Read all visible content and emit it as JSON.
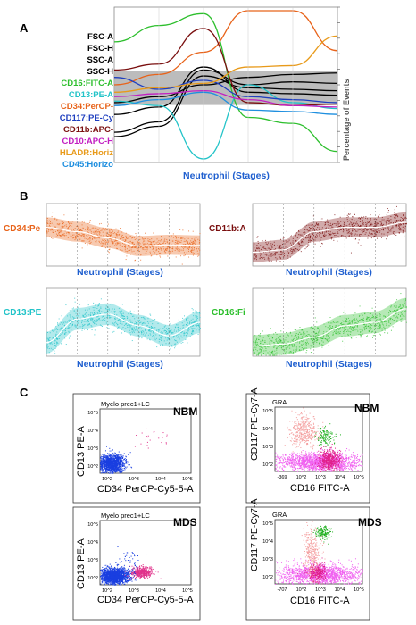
{
  "panels": {
    "a": "A",
    "b": "B",
    "c": "C"
  },
  "panelA": {
    "labels": [
      {
        "text": "FSC-A",
        "color": "#000000"
      },
      {
        "text": "FSC-H",
        "color": "#000000"
      },
      {
        "text": "SSC-A",
        "color": "#000000"
      },
      {
        "text": "SSC-H",
        "color": "#000000"
      },
      {
        "text": "CD16:FITC-A",
        "color": "#2dbf2d"
      },
      {
        "text": "CD13:PE-A",
        "color": "#22c3c8"
      },
      {
        "text": "CD34:PerCP-",
        "color": "#e8631a"
      },
      {
        "text": "CD117:PE-Cy",
        "color": "#1f3fbf"
      },
      {
        "text": "CD11b:APC-",
        "color": "#7a0f0f"
      },
      {
        "text": "CD10:APC-H",
        "color": "#c21fc2"
      },
      {
        "text": "HLADR:Horiz",
        "color": "#e89a1a"
      },
      {
        "text": "CD45:Horizo",
        "color": "#1f8fdf"
      }
    ],
    "xlabel": "Neutrophil (Stages)",
    "ylabel": "Percentage of Events"
  },
  "panelB": [
    {
      "label": "CD34:Pe",
      "color": "#e8631a",
      "xlabel": "Neutrophil (Stages)"
    },
    {
      "label": "CD11b:A",
      "color": "#7a0f0f",
      "xlabel": "Neutrophil (Stages)"
    },
    {
      "label": "CD13:PE",
      "color": "#22c3c8",
      "xlabel": "Neutrophil (Stages)"
    },
    {
      "label": "CD16:Fi",
      "color": "#2dbf2d",
      "xlabel": "Neutrophil (Stages)"
    }
  ],
  "panelC": [
    {
      "gate": "Myelo prec1+LC",
      "tag": "NBM",
      "ylabel": "CD13 PE-A",
      "xlabel": "CD34 PerCP-Cy5-5-A",
      "xticks": [
        "10^2",
        "10^3",
        "10^4",
        "10^5"
      ],
      "yticks": [
        "10^2",
        "10^3",
        "10^4",
        "10^5"
      ]
    },
    {
      "gate": "GRA",
      "tag": "NBM",
      "ylabel": "CD117 PE-Cy7-A",
      "xlabel": "CD16 FITC-A",
      "xticks": [
        "-369",
        "10^2",
        "10^3",
        "10^4",
        "10^5"
      ],
      "yticks": [
        "10^2",
        "10^3",
        "10^4",
        "10^5"
      ]
    },
    {
      "gate": "Myelo prec1+LC",
      "tag": "MDS",
      "ylabel": "CD13 PE-A",
      "xlabel": "CD34 PerCP-Cy5-5-A",
      "xticks": [
        "10^2",
        "10^3",
        "10^4",
        "10^5"
      ],
      "yticks": [
        "10^2",
        "10^3",
        "10^4",
        "10^5"
      ]
    },
    {
      "gate": "GRA",
      "tag": "MDS",
      "ylabel": "CD117 PE-Cy7-A",
      "xlabel": "CD16 FITC-A",
      "xticks": [
        "-707",
        "10^2",
        "10^3",
        "10^4",
        "10^5"
      ],
      "yticks": [
        "10^2",
        "10^3",
        "10^4",
        "10^5"
      ]
    }
  ],
  "chart_data": [
    {
      "type": "line",
      "panel": "A",
      "xlabel": "Neutrophil (Stages)",
      "ylabel": "Percentage of Events",
      "x": [
        0,
        1,
        2,
        3,
        4,
        5
      ],
      "series": [
        {
          "name": "FSC-A",
          "color": "#000000",
          "values": [
            0.38,
            0.42,
            0.5,
            0.55,
            0.57,
            0.58
          ]
        },
        {
          "name": "FSC-H",
          "color": "#000000",
          "values": [
            0.3,
            0.35,
            0.62,
            0.45,
            0.44,
            0.43
          ]
        },
        {
          "name": "SSC-A",
          "color": "#000000",
          "values": [
            0.18,
            0.25,
            0.6,
            0.5,
            0.52,
            0.51
          ]
        },
        {
          "name": "SSC-H",
          "color": "#000000",
          "values": [
            0.15,
            0.22,
            0.56,
            0.48,
            0.47,
            0.46
          ]
        },
        {
          "name": "CD16:FITC-A",
          "color": "#2dbf2d",
          "values": [
            0.79,
            0.9,
            0.98,
            0.28,
            0.24,
            0.05
          ]
        },
        {
          "name": "CD13:PE-A",
          "color": "#22c3c8",
          "values": [
            0.39,
            0.36,
            0.0,
            0.5,
            0.38,
            0.34
          ]
        },
        {
          "name": "CD34:PerCP-",
          "color": "#e8631a",
          "values": [
            0.5,
            0.57,
            0.72,
            1.0,
            1.0,
            0.73
          ]
        },
        {
          "name": "CD117:PE-Cy",
          "color": "#1f3fbf",
          "values": [
            0.55,
            0.47,
            0.53,
            0.42,
            0.4,
            0.38
          ]
        },
        {
          "name": "CD11b:APC-",
          "color": "#7a0f0f",
          "values": [
            0.6,
            0.64,
            0.88,
            0.38,
            0.36,
            0.37
          ]
        },
        {
          "name": "CD10:APC-H",
          "color": "#c21fc2",
          "values": [
            0.42,
            0.44,
            0.46,
            0.4,
            0.36,
            0.35
          ]
        },
        {
          "name": "HLADR:Horiz",
          "color": "#e89a1a",
          "values": [
            0.45,
            0.48,
            0.51,
            0.62,
            0.63,
            0.83
          ]
        },
        {
          "name": "CD45:Horizo",
          "color": "#1f8fdf",
          "values": [
            0.36,
            0.4,
            0.45,
            0.33,
            0.32,
            0.3
          ]
        }
      ]
    },
    {
      "type": "scatter",
      "panel": "B1",
      "name": "CD34:Pe",
      "x": [
        0,
        1,
        2,
        3,
        4,
        5
      ],
      "values": [
        0.62,
        0.55,
        0.45,
        0.32,
        0.34,
        0.33
      ]
    },
    {
      "type": "scatter",
      "panel": "B2",
      "name": "CD11b:A",
      "x": [
        0,
        1,
        2,
        3,
        4,
        5
      ],
      "values": [
        0.22,
        0.26,
        0.55,
        0.62,
        0.62,
        0.7
      ]
    },
    {
      "type": "scatter",
      "panel": "B3",
      "name": "CD13:PE",
      "x": [
        0,
        1,
        2,
        3,
        4,
        5
      ],
      "values": [
        0.2,
        0.55,
        0.62,
        0.45,
        0.3,
        0.5
      ]
    },
    {
      "type": "scatter",
      "panel": "B4",
      "name": "CD16:Fi",
      "x": [
        0,
        1,
        2,
        3,
        4,
        5
      ],
      "values": [
        0.15,
        0.18,
        0.28,
        0.45,
        0.5,
        0.7
      ]
    }
  ]
}
